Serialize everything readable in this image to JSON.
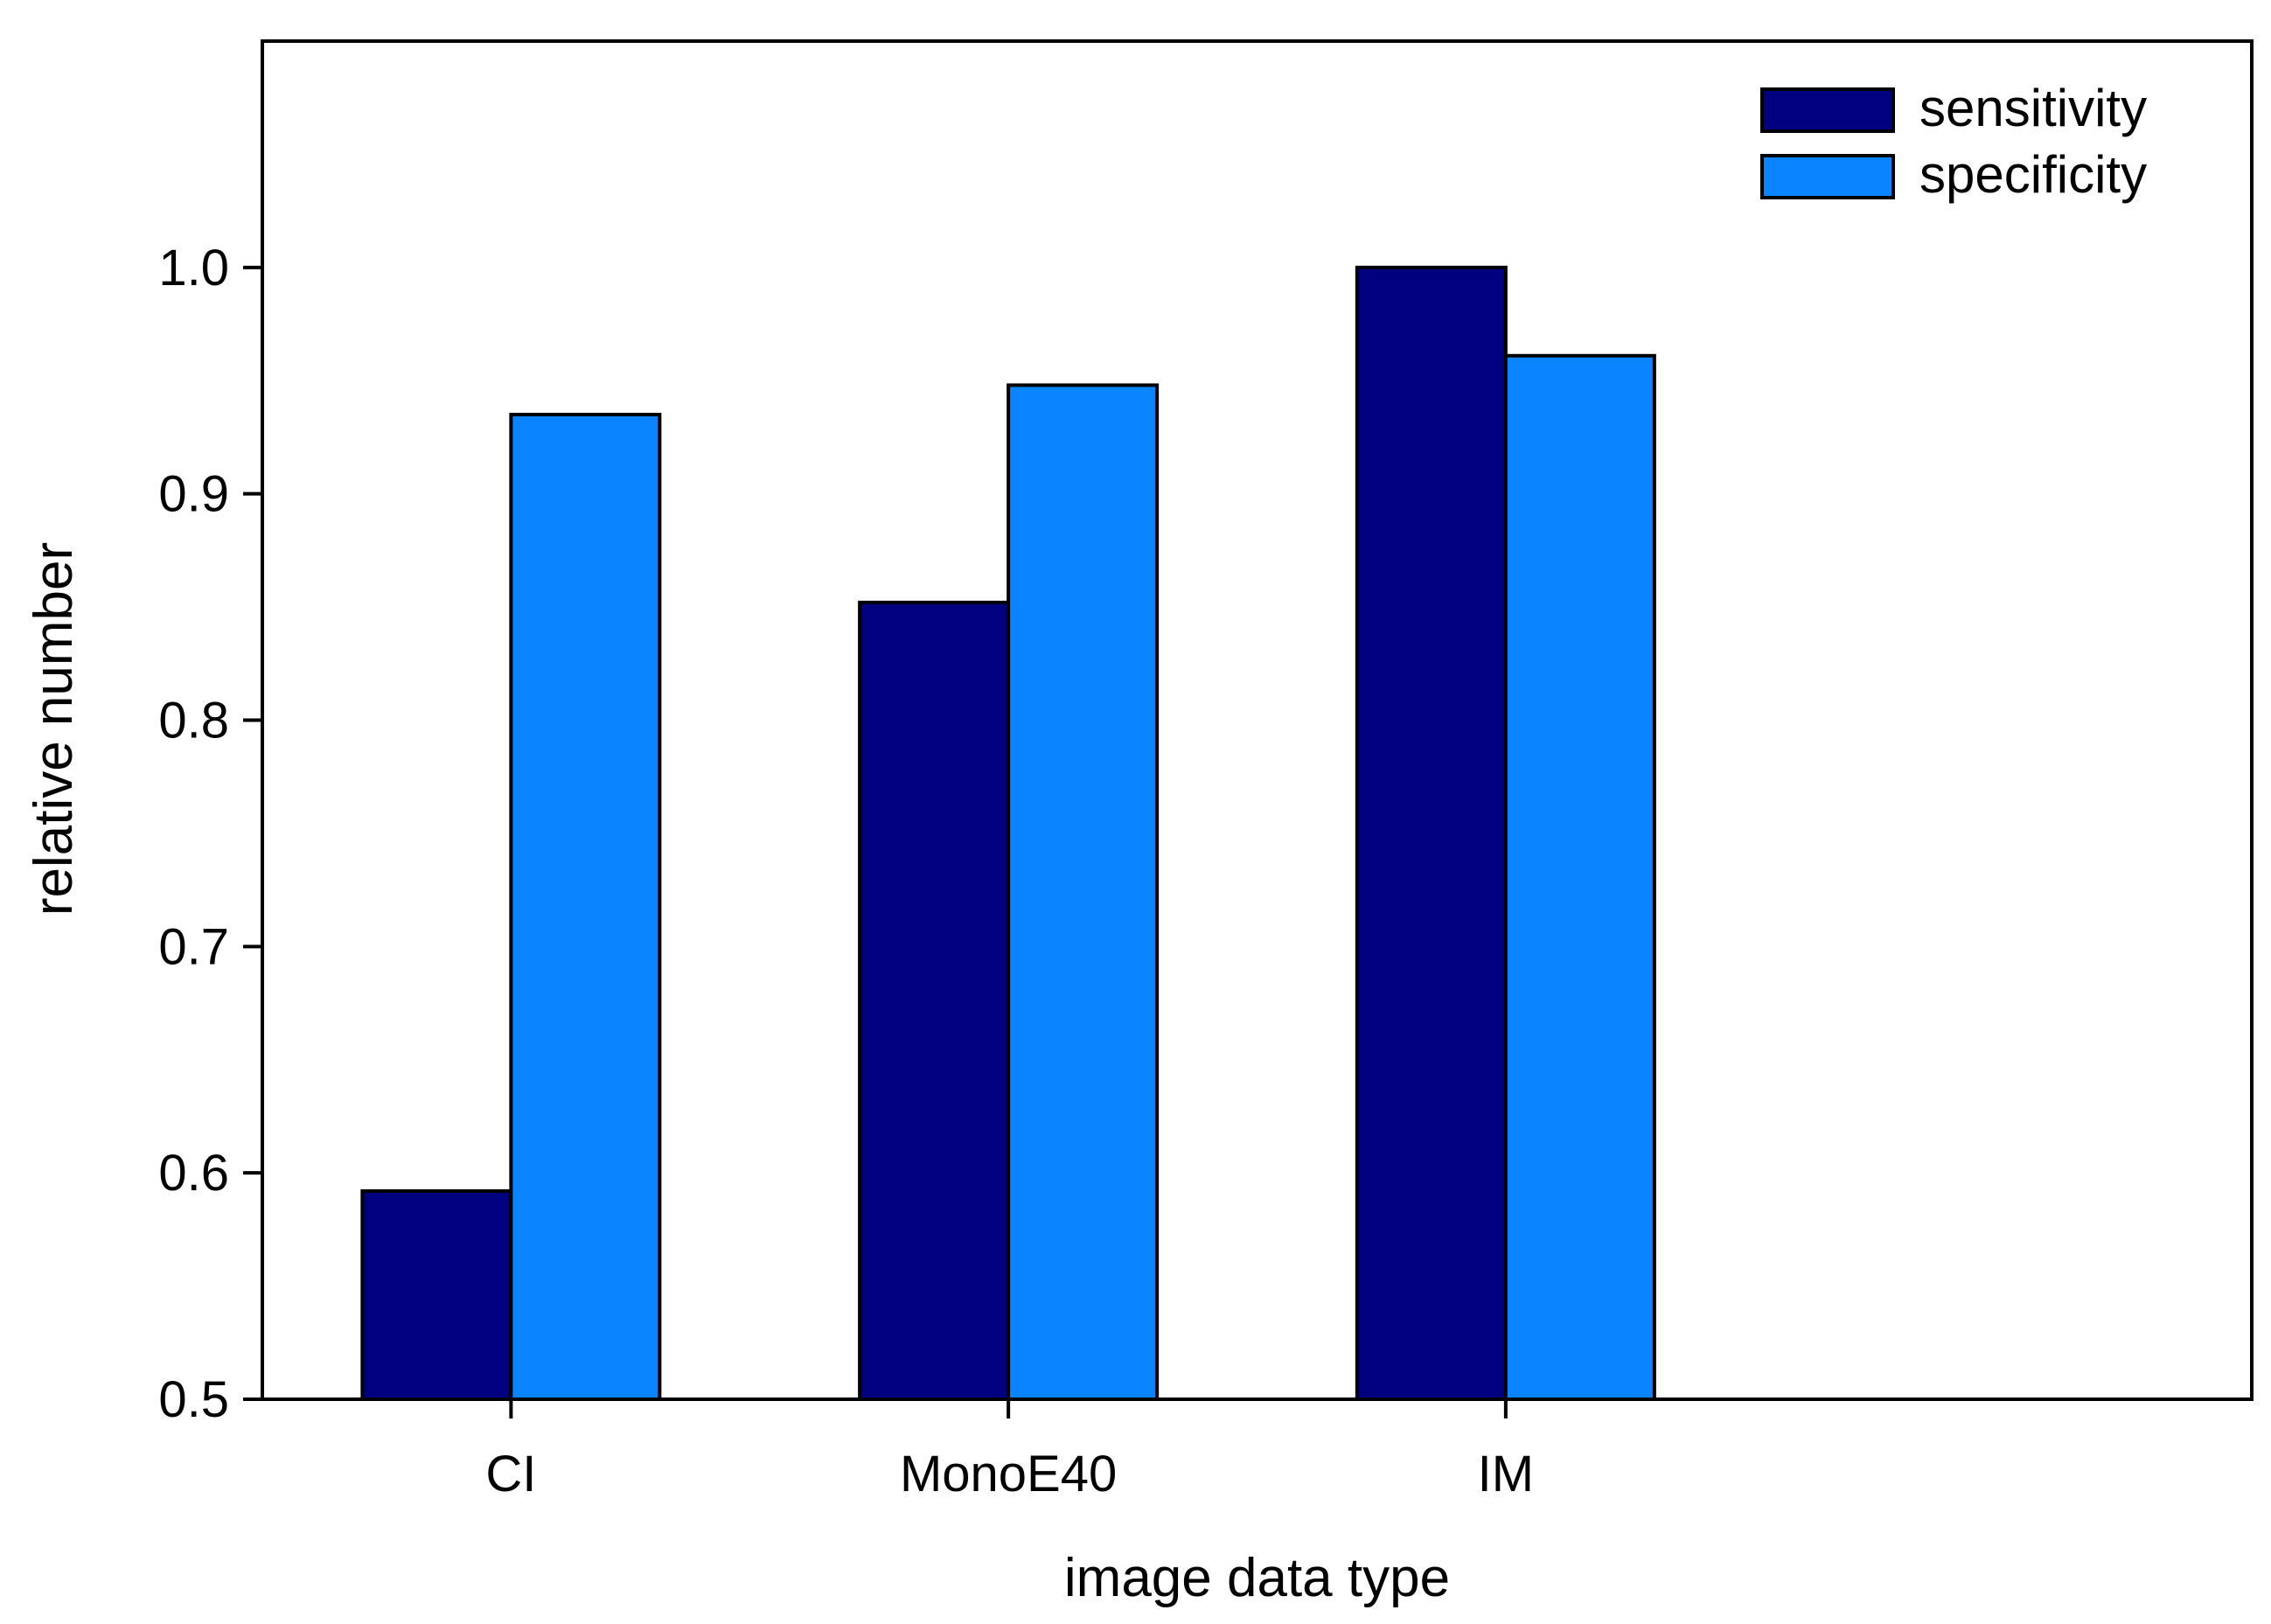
{
  "chart_data": {
    "type": "bar",
    "categories": [
      "CI",
      "MonoE40",
      "IM"
    ],
    "series": [
      {
        "name": "sensitivity",
        "color": "#000080",
        "values": [
          0.592,
          0.852,
          1.0
        ]
      },
      {
        "name": "specificity",
        "color": "#0a84ff",
        "values": [
          0.935,
          0.948,
          0.961
        ]
      }
    ],
    "xlabel": "image data type",
    "ylabel": "relative number",
    "ylim": [
      0.5,
      1.1
    ],
    "yticks": [
      0.5,
      0.6,
      0.7,
      0.8,
      0.9,
      1.0
    ],
    "ytick_labels": [
      "0.5",
      "0.6",
      "0.7",
      "0.8",
      "0.9",
      "1.0"
    ],
    "legend_position": "top-right",
    "grid": false
  }
}
